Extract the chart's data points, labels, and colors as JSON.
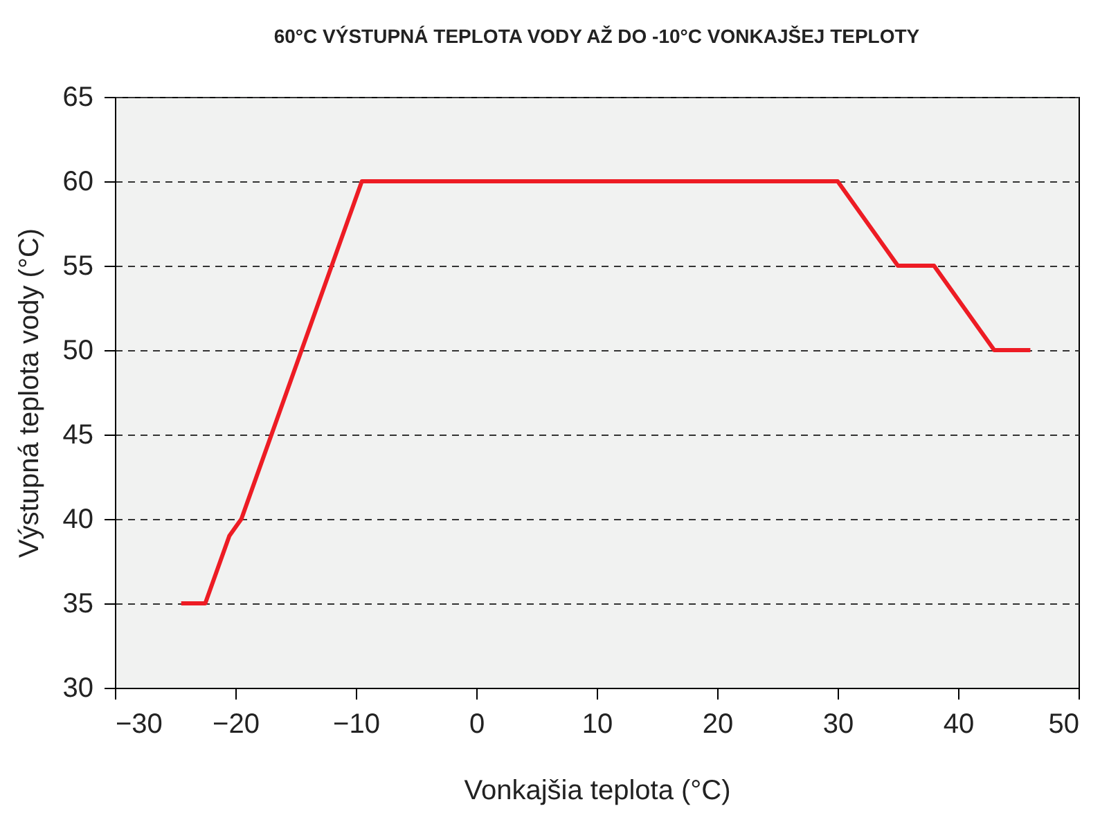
{
  "chart_data": {
    "type": "line",
    "title": "60°C VÝSTUPNÁ TEPLOTA VODY AŽ DO -10°C VONKAJŠEJ TEPLOTY",
    "xlabel": "Vonkajšia teplota (°C)",
    "ylabel": "Výstupná teplota vody (°C)",
    "x": [
      -24.5,
      -22.5,
      -20.5,
      -19.5,
      -9.5,
      30,
      35,
      38,
      43,
      46
    ],
    "series": [
      {
        "color": "#ed1c24",
        "values": [
          35,
          35,
          39,
          40,
          60,
          60,
          55,
          55,
          50,
          50
        ]
      }
    ],
    "xlim": [
      -30,
      50
    ],
    "xticks": [
      -30,
      -20,
      -10,
      0,
      10,
      20,
      30,
      40,
      50
    ],
    "ylim": [
      30,
      65
    ],
    "yticks": [
      30,
      35,
      40,
      45,
      50,
      55,
      60,
      65
    ],
    "grid": "y",
    "marker": "none",
    "line_style": "solid"
  }
}
